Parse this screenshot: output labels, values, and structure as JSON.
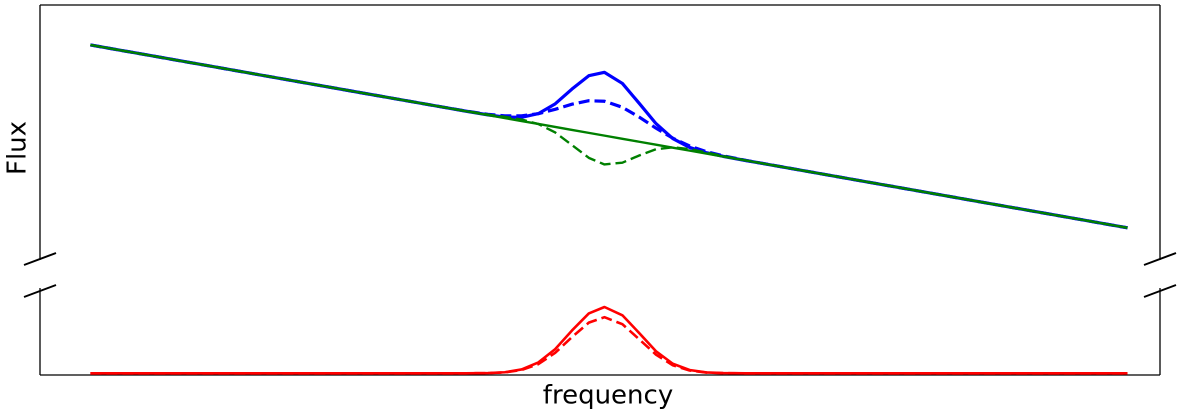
{
  "chart_data": [
    {
      "type": "line",
      "ylabel": "Flux",
      "xlim": [
        0,
        100
      ],
      "ylim": [
        0,
        100
      ],
      "x": [
        4.5,
        30,
        36,
        38,
        40,
        41.5,
        43,
        44.5,
        46,
        47.5,
        49,
        50.4,
        52,
        53.5,
        55,
        56.5,
        58,
        59.5,
        61,
        63,
        70,
        97.1
      ],
      "series": [
        {
          "color": "#0000ff",
          "style": "solid",
          "values": [
            84.2,
            64.28,
            59.6,
            58.05,
            56.57,
            55.71,
            55.59,
            57.07,
            60.93,
            66.78,
            72.04,
            73.37,
            69.0,
            61.13,
            53.11,
            47.21,
            43.69,
            41.61,
            40.17,
            38.54,
            33.08,
            11.92
          ]
        },
        {
          "color": "#0000ff",
          "style": "dashed",
          "values": [
            84.2,
            64.28,
            59.61,
            58.11,
            56.8,
            56.19,
            56.18,
            57.05,
            58.76,
            60.79,
            62.16,
            61.97,
            59.56,
            55.7,
            51.32,
            47.36,
            44.28,
            42.05,
            40.38,
            38.59,
            33.08,
            11.92
          ]
        },
        {
          "color": "#008000",
          "style": "dashed",
          "values": [
            84.2,
            64.28,
            59.61,
            58.1,
            56.71,
            55.79,
            54.73,
            52.95,
            49.63,
            44.64,
            39.59,
            36.97,
            37.68,
            40.53,
            42.99,
            43.76,
            43.03,
            41.71,
            40.31,
            38.59,
            33.08,
            11.92
          ]
        },
        {
          "color": "#008000",
          "style": "solid",
          "values": [
            84.2,
            64.28,
            59.6,
            58.04,
            56.48,
            55.31,
            54.14,
            52.97,
            51.8,
            50.63,
            49.46,
            48.37,
            47.12,
            45.95,
            44.78,
            43.61,
            42.44,
            41.27,
            40.1,
            38.54,
            33.08,
            11.92
          ]
        }
      ]
    },
    {
      "type": "line",
      "xlabel": "frequency",
      "xlim": [
        0,
        100
      ],
      "ylim": [
        0,
        100
      ],
      "x": [
        4.5,
        30,
        36,
        38,
        40,
        41.5,
        43,
        44.5,
        46,
        47.5,
        49,
        50.4,
        52,
        53.5,
        55,
        56.5,
        58,
        59.5,
        61,
        63,
        70,
        97.1
      ],
      "series": [
        {
          "color": "#ff0000",
          "style": "solid",
          "values": [
            2,
            2,
            2,
            2.02,
            2.28,
            3.25,
            6.52,
            14.79,
            30.47,
            52.39,
            72.43,
            80,
            70.25,
            49.35,
            27.97,
            13.23,
            5.9,
            3.05,
            2.23,
            2,
            2,
            2
          ]
        },
        {
          "color": "#ff0000",
          "style": "dashed",
          "values": [
            2,
            2,
            2,
            2.02,
            2.24,
            3.06,
            5.83,
            12.82,
            26.09,
            44.64,
            61.6,
            68,
            59.75,
            42.06,
            23.98,
            11.5,
            5.3,
            2.89,
            2.19,
            2,
            2,
            2
          ]
        }
      ]
    }
  ]
}
